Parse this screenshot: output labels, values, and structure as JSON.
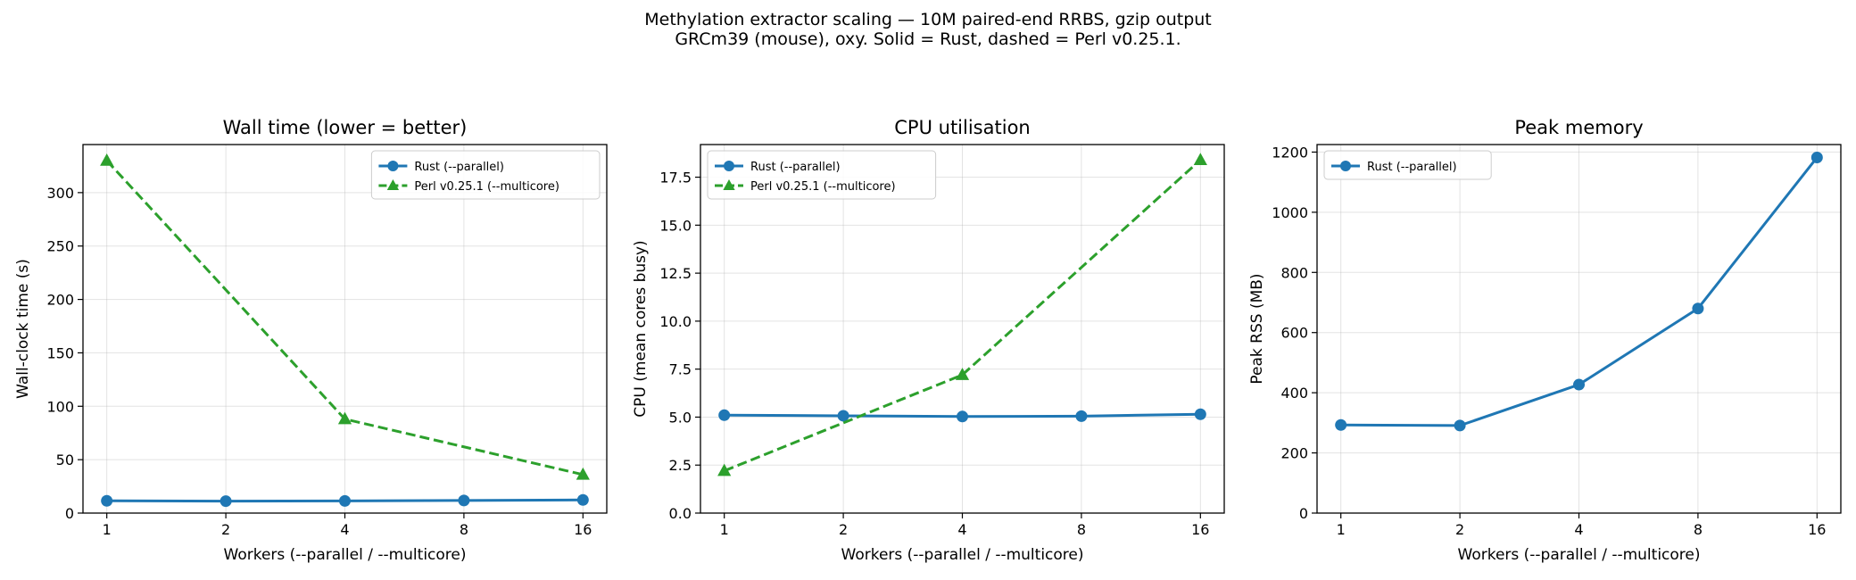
{
  "figure": {
    "suptitle_line1": "Methylation extractor scaling — 10M paired-end RRBS, gzip output",
    "suptitle_line2": "GRCm39 (mouse), oxy. Solid = Rust, dashed = Perl v0.25.1."
  },
  "colors": {
    "rust": "#1f77b4",
    "perl": "#2ca02c"
  },
  "chart_data": [
    {
      "type": "line",
      "title": "Wall time  (lower = better)",
      "xlabel": "Workers  (--parallel / --multicore)",
      "ylabel": "Wall-clock time (s)",
      "x_scale": "log2",
      "x_ticks": [
        1,
        2,
        4,
        8,
        16
      ],
      "ylim": [
        0,
        345
      ],
      "y_ticks": [
        0,
        50,
        100,
        150,
        200,
        250,
        300
      ],
      "grid": true,
      "legend_position": "upper right",
      "series": [
        {
          "name": "Rust (--parallel)",
          "style": "solid",
          "marker": "circle",
          "color": "#1f77b4",
          "x": [
            1,
            2,
            4,
            8,
            16
          ],
          "y": [
            11.5,
            11.2,
            11.4,
            11.8,
            12.3
          ]
        },
        {
          "name": "Perl v0.25.1 (--multicore)",
          "style": "dashed",
          "marker": "triangle",
          "color": "#2ca02c",
          "x": [
            1,
            4,
            16
          ],
          "y": [
            330,
            88,
            36
          ]
        }
      ]
    },
    {
      "type": "line",
      "title": "CPU utilisation",
      "xlabel": "Workers  (--parallel / --multicore)",
      "ylabel": "CPU (mean cores busy)",
      "x_scale": "log2",
      "x_ticks": [
        1,
        2,
        4,
        8,
        16
      ],
      "ylim": [
        0,
        19.2
      ],
      "y_ticks": [
        0.0,
        2.5,
        5.0,
        7.5,
        10.0,
        12.5,
        15.0,
        17.5
      ],
      "grid": true,
      "legend_position": "upper left",
      "series": [
        {
          "name": "Rust (--parallel)",
          "style": "solid",
          "marker": "circle",
          "color": "#1f77b4",
          "x": [
            1,
            2,
            4,
            8,
            16
          ],
          "y": [
            5.1,
            5.07,
            5.03,
            5.05,
            5.15
          ]
        },
        {
          "name": "Perl v0.25.1 (--multicore)",
          "style": "dashed",
          "marker": "triangle",
          "color": "#2ca02c",
          "x": [
            1,
            4,
            16
          ],
          "y": [
            2.2,
            7.2,
            18.4
          ]
        }
      ]
    },
    {
      "type": "line",
      "title": "Peak memory",
      "xlabel": "Workers  (--parallel / --multicore)",
      "ylabel": "Peak RSS (MB)",
      "x_scale": "log2",
      "x_ticks": [
        1,
        2,
        4,
        8,
        16
      ],
      "ylim": [
        0,
        1225
      ],
      "y_ticks": [
        0,
        200,
        400,
        600,
        800,
        1000,
        1200
      ],
      "grid": true,
      "legend_position": "upper left",
      "series": [
        {
          "name": "Rust (--parallel)",
          "style": "solid",
          "marker": "circle",
          "color": "#1f77b4",
          "x": [
            1,
            2,
            4,
            8,
            16
          ],
          "y": [
            293,
            291,
            427,
            680,
            1182
          ]
        }
      ]
    }
  ]
}
